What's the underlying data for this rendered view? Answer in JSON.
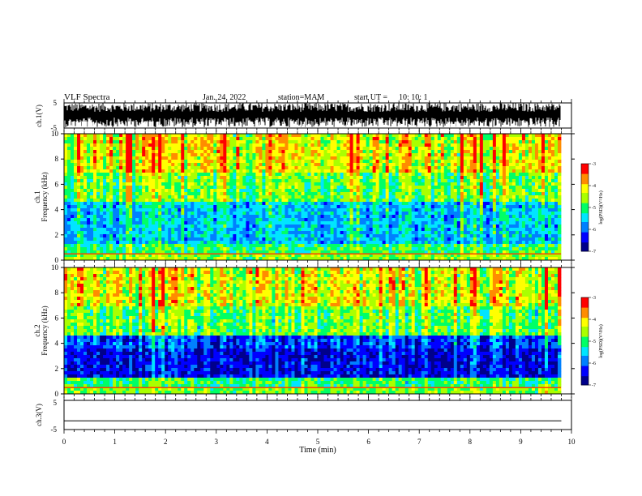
{
  "header": {
    "title": "VLF Spectra",
    "date": "Jan. 24, 2022",
    "station": "station=MAM",
    "start": "start UT =",
    "start_time": "10: 10: 1"
  },
  "chart_data": [
    {
      "type": "line",
      "panel": "ch1-waveform",
      "ylabel": "ch.1(V)",
      "ylim": [
        -5,
        5
      ],
      "yticks": [
        "5",
        "-5"
      ],
      "xlim": [
        0,
        10
      ],
      "description_of_trace": "dense impulsive waveform spanning roughly -5 to 5 V"
    },
    {
      "type": "heatmap",
      "panel": "ch1-spectrogram",
      "ylabel": [
        "ch.1",
        "Frequency (kHz)"
      ],
      "ylim": [
        0,
        10
      ],
      "yticks": [
        "0",
        "2",
        "4",
        "6",
        "8",
        "10"
      ],
      "xlim": [
        0,
        10
      ],
      "colorbar": {
        "label": "log(PSD)(V²/Hz)",
        "ticks": [
          "-3",
          "-4",
          "-5",
          "-6",
          "-7"
        ],
        "range": [
          -7,
          -3
        ]
      }
    },
    {
      "type": "heatmap",
      "panel": "ch2-spectrogram",
      "ylabel": [
        "ch.2",
        "Frequency (kHz)"
      ],
      "ylim": [
        0,
        10
      ],
      "yticks": [
        "0",
        "2",
        "4",
        "6",
        "8",
        "10"
      ],
      "xlim": [
        0,
        10
      ],
      "colorbar": {
        "label": "log(PSD)(V²/Hz)",
        "ticks": [
          "-3",
          "-4",
          "-5",
          "-6",
          "-7"
        ],
        "range": [
          -7,
          -3
        ]
      }
    },
    {
      "type": "line",
      "panel": "ch3-waveform",
      "ylabel": "ch.3(V)",
      "ylim": [
        -5,
        5
      ],
      "yticks": [
        "5",
        "-5"
      ],
      "xlim": [
        0,
        10
      ],
      "series": [
        {
          "x": [
            0,
            9.8
          ],
          "values": [
            -2,
            -2
          ]
        }
      ]
    }
  ],
  "xaxis": {
    "label": "Time (min)",
    "ticks": [
      "0",
      "1",
      "2",
      "3",
      "4",
      "5",
      "6",
      "7",
      "8",
      "9",
      "10"
    ]
  },
  "colormap": [
    "#00008b",
    "#0000ff",
    "#0080ff",
    "#00e5ff",
    "#00ff66",
    "#aaff00",
    "#ffff00",
    "#ff8c00",
    "#ff0000",
    "#ffffff"
  ]
}
